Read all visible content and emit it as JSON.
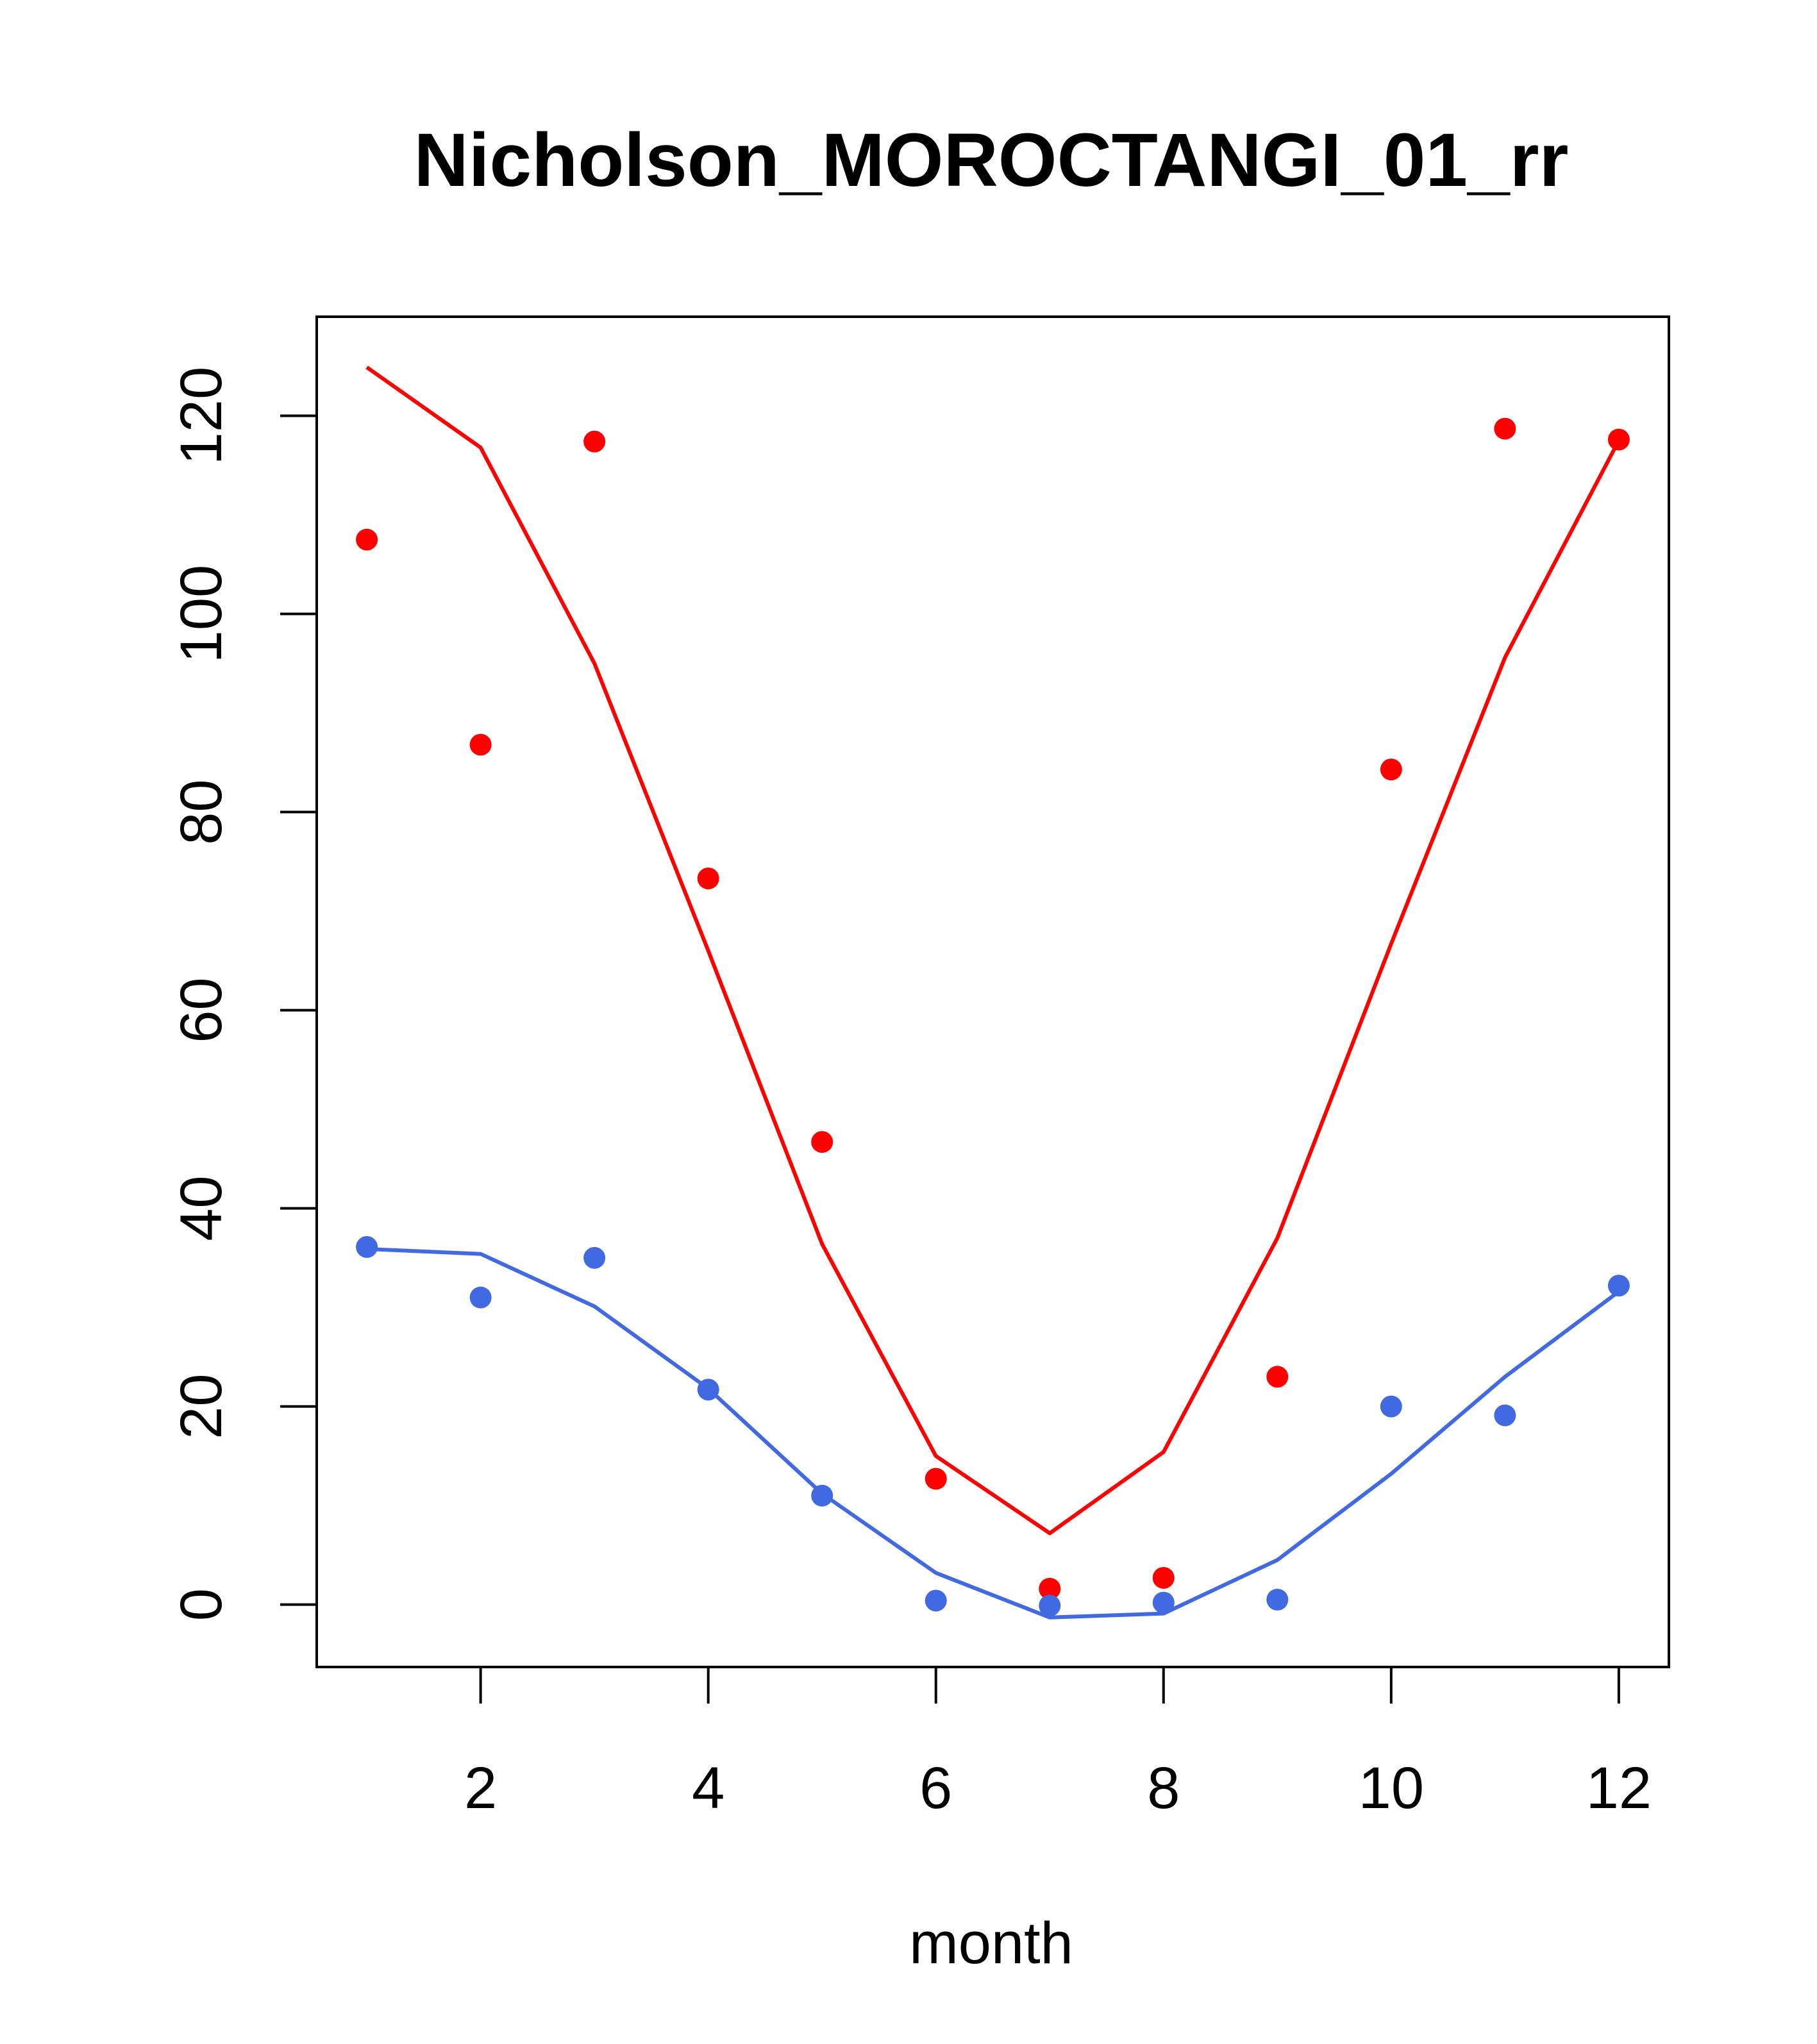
{
  "chart_data": {
    "type": "line",
    "title": "Nicholson_MOROCTANGI_01_rr",
    "xlabel": "month",
    "ylabel": "",
    "xlim": [
      0.56,
      12.44
    ],
    "ylim": [
      -6.3,
      130
    ],
    "x_ticks": [
      2,
      4,
      6,
      8,
      10,
      12
    ],
    "x_tick_labels": [
      "2",
      "4",
      "6",
      "8",
      "10",
      "12"
    ],
    "y_ticks": [
      0,
      20,
      40,
      60,
      80,
      100,
      120
    ],
    "y_tick_labels": [
      "0",
      "20",
      "40",
      "60",
      "80",
      "100",
      "120"
    ],
    "grid": false,
    "legend": "none",
    "x": [
      1,
      2,
      3,
      4,
      5,
      6,
      7,
      8,
      9,
      10,
      11,
      12
    ],
    "series": [
      {
        "name": "red",
        "color": "#ff0000",
        "points": [
          107.5,
          86.8,
          117.4,
          73.3,
          46.7,
          12.7,
          1.6,
          2.7,
          23.0,
          84.3,
          118.7,
          117.6
        ],
        "line": [
          124.9,
          116.8,
          95.0,
          66.0,
          36.4,
          15.0,
          7.2,
          15.4,
          37.0,
          66.7,
          95.6,
          117.5
        ]
      },
      {
        "name": "blue",
        "color": "#4169e1",
        "points": [
          36.1,
          31.0,
          35.0,
          21.7,
          11.0,
          0.4,
          -0.1,
          0.2,
          0.5,
          20.0,
          19.1,
          32.2
        ],
        "line": [
          35.9,
          35.4,
          30.1,
          21.8,
          11.2,
          3.2,
          -1.3,
          -0.9,
          4.5,
          13.2,
          23.0,
          31.6
        ]
      }
    ]
  }
}
